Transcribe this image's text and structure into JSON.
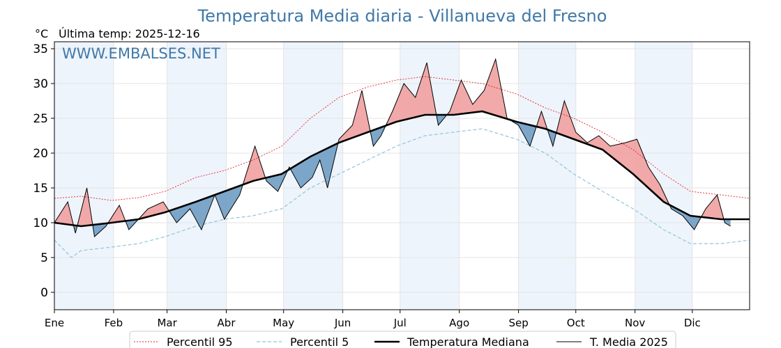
{
  "chart_data": {
    "type": "line",
    "title": "Temperatura Media diaria - Villanueva del Fresno",
    "unit_label": "°C",
    "last_temp_label": "Última temp: 2025-12-16",
    "watermark": "WWW.EMBALSES.NET",
    "ylim": [
      -2.5,
      36
    ],
    "yticks": [
      0,
      5,
      10,
      15,
      20,
      25,
      30,
      35
    ],
    "months": [
      "Ene",
      "Feb",
      "Mar",
      "Abr",
      "May",
      "Jun",
      "Jul",
      "Ago",
      "Sep",
      "Oct",
      "Nov",
      "Dic"
    ],
    "month_start_day": [
      1,
      32,
      60,
      91,
      121,
      152,
      182,
      213,
      244,
      274,
      305,
      335
    ],
    "grid": true,
    "legend_position": "bottom",
    "colors": {
      "p95": "#e8202a",
      "p5": "#8ec5dc",
      "median": "#000000",
      "current": "#000000",
      "above_fill": "#f0a0a0",
      "below_fill": "#6f9dc3",
      "title": "#3f78a8",
      "band": "#eef4fb"
    },
    "series": [
      {
        "name": "Percentil 95",
        "key": "p95",
        "style": "dotted-red",
        "points": [
          [
            1,
            13.5
          ],
          [
            15,
            13.8
          ],
          [
            31,
            13.2
          ],
          [
            45,
            13.6
          ],
          [
            59,
            14.5
          ],
          [
            75,
            16.5
          ],
          [
            90,
            17.5
          ],
          [
            105,
            19.0
          ],
          [
            120,
            21.0
          ],
          [
            135,
            25.0
          ],
          [
            150,
            28.0
          ],
          [
            165,
            29.5
          ],
          [
            180,
            30.5
          ],
          [
            195,
            31.0
          ],
          [
            210,
            30.5
          ],
          [
            225,
            30.0
          ],
          [
            243,
            28.5
          ],
          [
            258,
            26.5
          ],
          [
            273,
            25.0
          ],
          [
            288,
            23.0
          ],
          [
            304,
            20.5
          ],
          [
            320,
            17.0
          ],
          [
            334,
            14.5
          ],
          [
            350,
            14.0
          ],
          [
            365,
            13.5
          ]
        ]
      },
      {
        "name": "Percentil 5",
        "key": "p5",
        "style": "dashed-lightblue",
        "points": [
          [
            1,
            7.5
          ],
          [
            10,
            5.0
          ],
          [
            15,
            6.0
          ],
          [
            31,
            6.5
          ],
          [
            45,
            7.0
          ],
          [
            59,
            8.0
          ],
          [
            75,
            9.5
          ],
          [
            90,
            10.5
          ],
          [
            105,
            11.0
          ],
          [
            120,
            12.0
          ],
          [
            135,
            15.0
          ],
          [
            150,
            17.0
          ],
          [
            165,
            19.0
          ],
          [
            180,
            21.0
          ],
          [
            195,
            22.5
          ],
          [
            210,
            23.0
          ],
          [
            225,
            23.5
          ],
          [
            243,
            22.0
          ],
          [
            258,
            20.0
          ],
          [
            273,
            17.0
          ],
          [
            288,
            14.5
          ],
          [
            304,
            12.0
          ],
          [
            320,
            9.0
          ],
          [
            334,
            7.0
          ],
          [
            350,
            7.0
          ],
          [
            365,
            7.5
          ]
        ]
      },
      {
        "name": "Temperatura Mediana",
        "key": "median",
        "style": "thick-black",
        "points": [
          [
            1,
            10.0
          ],
          [
            15,
            9.5
          ],
          [
            31,
            10.0
          ],
          [
            45,
            10.5
          ],
          [
            59,
            11.5
          ],
          [
            75,
            13.0
          ],
          [
            90,
            14.5
          ],
          [
            105,
            16.0
          ],
          [
            120,
            17.0
          ],
          [
            135,
            19.5
          ],
          [
            150,
            21.5
          ],
          [
            165,
            23.0
          ],
          [
            180,
            24.5
          ],
          [
            195,
            25.5
          ],
          [
            210,
            25.5
          ],
          [
            225,
            26.0
          ],
          [
            243,
            24.5
          ],
          [
            258,
            23.5
          ],
          [
            273,
            22.0
          ],
          [
            288,
            20.5
          ],
          [
            304,
            17.0
          ],
          [
            320,
            13.0
          ],
          [
            334,
            11.0
          ],
          [
            350,
            10.5
          ],
          [
            365,
            10.5
          ]
        ]
      },
      {
        "name": "T. Media 2025",
        "key": "current",
        "style": "thin-black",
        "points": [
          [
            1,
            10.0
          ],
          [
            8,
            13.0
          ],
          [
            12,
            8.5
          ],
          [
            18,
            15.0
          ],
          [
            22,
            8.0
          ],
          [
            28,
            9.5
          ],
          [
            35,
            12.5
          ],
          [
            40,
            9.0
          ],
          [
            50,
            12.0
          ],
          [
            58,
            13.0
          ],
          [
            65,
            10.0
          ],
          [
            72,
            12.0
          ],
          [
            78,
            9.0
          ],
          [
            85,
            14.0
          ],
          [
            90,
            10.5
          ],
          [
            98,
            14.0
          ],
          [
            106,
            21.0
          ],
          [
            112,
            16.0
          ],
          [
            118,
            14.5
          ],
          [
            124,
            18.0
          ],
          [
            130,
            15.0
          ],
          [
            136,
            16.5
          ],
          [
            140,
            19.0
          ],
          [
            144,
            15.0
          ],
          [
            150,
            22.0
          ],
          [
            157,
            24.0
          ],
          [
            162,
            29.0
          ],
          [
            168,
            21.0
          ],
          [
            172,
            22.5
          ],
          [
            178,
            26.0
          ],
          [
            184,
            30.0
          ],
          [
            190,
            28.0
          ],
          [
            196,
            33.0
          ],
          [
            202,
            24.0
          ],
          [
            208,
            26.0
          ],
          [
            214,
            30.5
          ],
          [
            220,
            27.0
          ],
          [
            226,
            29.0
          ],
          [
            232,
            33.5
          ],
          [
            238,
            25.0
          ],
          [
            244,
            24.0
          ],
          [
            250,
            21.0
          ],
          [
            256,
            26.0
          ],
          [
            262,
            21.0
          ],
          [
            268,
            27.5
          ],
          [
            274,
            23.0
          ],
          [
            280,
            21.5
          ],
          [
            286,
            22.5
          ],
          [
            292,
            21.0
          ],
          [
            300,
            21.5
          ],
          [
            306,
            22.0
          ],
          [
            312,
            18.0
          ],
          [
            318,
            15.5
          ],
          [
            324,
            12.0
          ],
          [
            330,
            11.0
          ],
          [
            336,
            9.0
          ],
          [
            342,
            12.0
          ],
          [
            348,
            14.0
          ],
          [
            352,
            10.0
          ],
          [
            355,
            9.5
          ]
        ]
      }
    ]
  }
}
